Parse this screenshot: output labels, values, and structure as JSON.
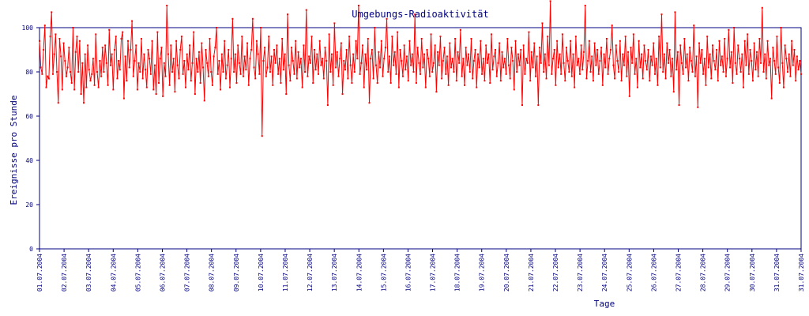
{
  "chart_data": {
    "type": "line",
    "title": "Umgebungs-Radioaktivität",
    "xlabel": "Tage",
    "ylabel": "Ereignisse pro Stunde",
    "ylim": [
      0,
      100
    ],
    "yticks": [
      "0",
      "20",
      "40",
      "60",
      "80",
      "100"
    ],
    "xticks": [
      "01.07.2004",
      "02.07.2004",
      "03.07.2004",
      "04.07.2004",
      "05.07.2004",
      "06.07.2004",
      "07.07.2004",
      "08.07.2004",
      "09.07.2004",
      "10.07.2004",
      "11.07.2004",
      "12.07.2004",
      "13.07.2004",
      "14.07.2004",
      "15.07.2004",
      "16.07.2004",
      "17.07.2004",
      "18.07.2004",
      "19.07.2004",
      "20.07.2004",
      "21.07.2004",
      "22.07.2004",
      "23.07.2004",
      "24.07.2004",
      "25.07.2004",
      "26.07.2004",
      "27.07.2004",
      "28.07.2004",
      "29.07.2004",
      "30.07.2004",
      "31.07.2004",
      "31.07.2004"
    ],
    "x_range_days": [
      0,
      31
    ],
    "samples_per_day": 24,
    "grid": false,
    "legend": "none",
    "colors": {
      "line": "#ff0000",
      "axes": "#000080",
      "text": "#000080"
    },
    "series": [
      {
        "values": [
          94,
          82,
          79,
          90,
          101,
          73,
          78,
          77,
          96,
          107,
          79,
          88,
          97,
          80,
          66,
          95,
          87,
          72,
          93,
          85,
          78,
          82,
          91,
          80,
          75,
          100,
          72,
          89,
          96,
          80,
          94,
          70,
          84,
          66,
          88,
          73,
          92,
          81,
          76,
          79,
          86,
          74,
          97,
          80,
          73,
          85,
          78,
          91,
          80,
          92,
          84,
          74,
          99,
          83,
          88,
          72,
          90,
          96,
          77,
          85,
          81,
          95,
          98,
          68,
          87,
          76,
          94,
          82,
          90,
          103,
          78,
          85,
          92,
          72,
          84,
          80,
          95,
          77,
          88,
          81,
          73,
          90,
          86,
          79,
          94,
          72,
          83,
          70,
          98,
          75,
          86,
          91,
          69,
          84,
          78,
          110,
          88,
          74,
          92,
          80,
          86,
          71,
          94,
          83,
          77,
          90,
          96,
          79,
          85,
          73,
          88,
          81,
          92,
          76,
          84,
          98,
          70,
          86,
          80,
          89,
          75,
          93,
          82,
          67,
          90,
          84,
          78,
          95,
          80,
          74,
          87,
          91,
          100,
          79,
          85,
          72,
          88,
          80,
          94,
          77,
          83,
          90,
          73,
          86,
          104,
          80,
          88,
          75,
          92,
          84,
          79,
          96,
          78,
          87,
          81,
          93,
          74,
          86,
          90,
          104,
          82,
          77,
          94,
          88,
          79,
          100,
          51,
          85,
          91,
          78,
          82,
          96,
          80,
          87,
          74,
          90,
          84,
          92,
          79,
          86,
          75,
          95,
          81,
          88,
          70,
          106,
          83,
          76,
          91,
          85,
          79,
          94,
          77,
          89,
          82,
          86,
          73,
          92,
          80,
          108,
          78,
          87,
          84,
          96,
          75,
          90,
          81,
          88,
          79,
          94,
          83,
          86,
          77,
          91,
          85,
          65,
          97,
          80,
          88,
          74,
          102,
          82,
          89,
          78,
          86,
          93,
          70,
          85,
          81,
          90,
          77,
          96,
          83,
          75,
          88,
          80,
          94,
          86,
          110,
          79,
          84,
          92,
          73,
          88,
          81,
          95,
          66,
          86,
          90,
          77,
          100,
          83,
          75,
          89,
          82,
          94,
          78,
          86,
          91,
          104,
          80,
          87,
          75,
          96,
          83,
          89,
          79,
          98,
          73,
          90,
          85,
          78,
          92,
          81,
          87,
          76,
          94,
          83,
          88,
          80,
          106,
          75,
          91,
          84,
          79,
          95,
          82,
          88,
          73,
          90,
          86,
          78,
          97,
          80,
          84,
          92,
          71,
          89,
          83,
          96,
          77,
          85,
          91,
          79,
          87,
          74,
          93,
          82,
          86,
          80,
          95,
          76,
          89,
          84,
          99,
          78,
          86,
          74,
          91,
          83,
          88,
          80,
          95,
          77,
          85,
          90,
          73,
          88,
          82,
          94,
          79,
          86,
          76,
          92,
          84,
          88,
          75,
          97,
          81,
          87,
          90,
          78,
          84,
          93,
          76,
          89,
          82,
          86,
          79,
          95,
          83,
          77,
          91,
          85,
          72,
          94,
          80,
          88,
          83,
          90,
          65,
          92,
          79,
          86,
          84,
          98,
          76,
          89,
          82,
          93,
          78,
          87,
          65,
          91,
          84,
          102,
          80,
          88,
          77,
          96,
          83,
          112,
          79,
          86,
          90,
          74,
          94,
          82,
          88,
          79,
          97,
          84,
          76,
          91,
          85,
          80,
          94,
          78,
          88,
          73,
          96,
          83,
          86,
          79,
          92,
          81,
          89,
          110,
          77,
          85,
          94,
          80,
          87,
          76,
          93,
          83,
          90,
          79,
          85,
          91,
          74,
          88,
          82,
          95,
          79,
          86,
          90,
          101,
          83,
          77,
          92,
          85,
          80,
          94,
          76,
          88,
          83,
          96,
          78,
          89,
          69,
          91,
          84,
          97,
          79,
          86,
          73,
          94,
          82,
          88,
          77,
          92,
          85,
          81,
          90,
          76,
          87,
          83,
          93,
          79,
          86,
          74,
          96,
          82,
          106,
          80,
          88,
          77,
          93,
          84,
          90,
          78,
          86,
          71,
          107,
          81,
          89,
          65,
          92,
          84,
          79,
          95,
          82,
          88,
          76,
          91,
          85,
          80,
          101,
          78,
          87,
          64,
          93,
          84,
          90,
          79,
          86,
          74,
          96,
          82,
          88,
          77,
          92,
          85,
          81,
          90,
          76,
          94,
          83,
          87,
          80,
          95,
          78,
          86,
          99,
          82,
          89,
          75,
          100,
          84,
          79,
          92,
          86,
          80,
          88,
          73,
          94,
          83,
          97,
          79,
          90,
          85,
          76,
          93,
          81,
          89,
          78,
          95,
          84,
          109,
          80,
          88,
          77,
          94,
          83,
          86,
          68,
          91,
          85,
          79,
          96,
          82,
          75,
          100,
          84,
          73,
          92,
          86,
          80,
          88,
          78,
          94,
          83,
          90,
          76,
          87,
          81,
          85,
          79
        ]
      }
    ]
  }
}
